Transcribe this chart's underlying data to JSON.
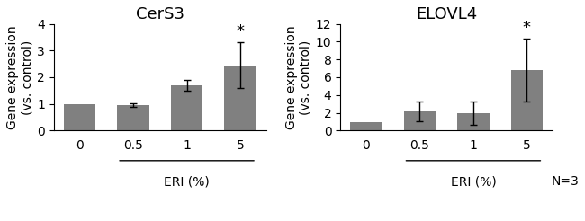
{
  "chart1": {
    "title": "CerS3",
    "categories": [
      "0",
      "0.5",
      "1",
      "5"
    ],
    "values": [
      1.0,
      0.95,
      1.7,
      2.45
    ],
    "errors": [
      0.0,
      0.07,
      0.2,
      0.85
    ],
    "bar_color": "#808080",
    "ylabel": "Gene expression\n(vs. control)",
    "xlabel_line_cats": [
      "0.5",
      "1",
      "5"
    ],
    "xlabel_label": "ERI (%)",
    "ylim": [
      0,
      4
    ],
    "yticks": [
      0,
      1,
      2,
      3,
      4
    ],
    "star_index": 3
  },
  "chart2": {
    "title": "ELOVL4",
    "categories": [
      "0",
      "0.5",
      "1",
      "5"
    ],
    "values": [
      1.0,
      2.2,
      2.0,
      6.8
    ],
    "errors": [
      0.0,
      1.1,
      1.3,
      3.5
    ],
    "bar_color": "#808080",
    "ylabel": "Gene expression\n(vs. control)",
    "xlabel_line_cats": [
      "0.5",
      "1",
      "5"
    ],
    "xlabel_label": "ERI (%)",
    "xlabel_n": "N=3",
    "ylim": [
      0,
      12
    ],
    "yticks": [
      0,
      2,
      4,
      6,
      8,
      10,
      12
    ],
    "star_index": 3
  },
  "background_color": "#ffffff",
  "bar_width": 0.6,
  "fontsize_title": 13,
  "fontsize_axis": 10,
  "fontsize_tick": 10,
  "fontsize_star": 13
}
